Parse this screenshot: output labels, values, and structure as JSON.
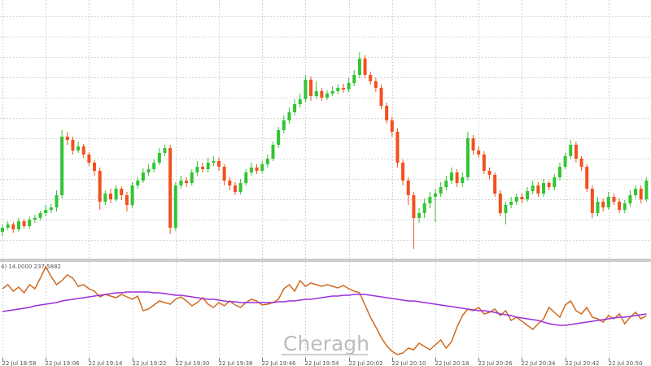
{
  "watermark": "Cheragh",
  "chart_data": [
    {
      "type": "candlestick",
      "categories": [
        "22 Jul 18:58",
        null,
        null,
        null,
        null,
        null,
        null,
        null,
        "22 Jul 19:06",
        null,
        null,
        null,
        null,
        null,
        null,
        null,
        "22 Jul 19:14",
        null,
        null,
        null,
        null,
        null,
        null,
        null,
        "22 Jul 19:22",
        null,
        null,
        null,
        null,
        null,
        null,
        null,
        "22 Jul 19:30",
        null,
        null,
        null,
        null,
        null,
        null,
        null,
        "22 Jul 19:38",
        null,
        null,
        null,
        null,
        null,
        null,
        null,
        "22 Jul 19:46",
        null,
        null,
        null,
        null,
        null,
        null,
        null,
        "22 Jul 19:54",
        null,
        null,
        null,
        null,
        null,
        null,
        null,
        "22 Jul 20:02",
        null,
        null,
        null,
        null,
        null,
        null,
        null,
        "22 Jul 20:10",
        null,
        null,
        null,
        null,
        null,
        null,
        null,
        "22 Jul 20:18",
        null,
        null,
        null,
        null,
        null,
        null,
        null,
        "22 Jul 20:26",
        null,
        null,
        null,
        null,
        null,
        null,
        null,
        "22 Jul 20:34",
        null,
        null,
        null,
        null,
        null,
        null,
        null,
        "22 Jul 20:42",
        null,
        null,
        null,
        null,
        null,
        null,
        null,
        "22 Jul 20:50",
        null,
        null,
        null,
        null,
        null,
        null,
        null
      ],
      "open": [
        33,
        38,
        42,
        36,
        46,
        40,
        48,
        50,
        56,
        60,
        63,
        78,
        150,
        146,
        133,
        138,
        128,
        118,
        108,
        70,
        80,
        73,
        86,
        78,
        66,
        90,
        96,
        106,
        110,
        118,
        130,
        136,
        38,
        90,
        96,
        93,
        106,
        113,
        110,
        118,
        120,
        113,
        96,
        90,
        82,
        93,
        106,
        112,
        108,
        116,
        123,
        140,
        158,
        170,
        180,
        190,
        196,
        220,
        200,
        206,
        198,
        203,
        206,
        210,
        208,
        216,
        226,
        246,
        226,
        218,
        210,
        188,
        170,
        156,
        118,
        96,
        78,
        50,
        56,
        68,
        76,
        80,
        88,
        96,
        106,
        93,
        100,
        148,
        133,
        128,
        108,
        103,
        80,
        56,
        66,
        70,
        76,
        73,
        83,
        90,
        80,
        93,
        88,
        100,
        113,
        126,
        140,
        123,
        113,
        86,
        56,
        70,
        63,
        76,
        70,
        60,
        68,
        78,
        86,
        73
      ],
      "high": [
        42,
        46,
        45,
        50,
        49,
        52,
        54,
        59,
        66,
        67,
        84,
        158,
        156,
        150,
        144,
        141,
        131,
        121,
        112,
        84,
        86,
        90,
        89,
        82,
        94,
        100,
        111,
        116,
        122,
        136,
        140,
        140,
        94,
        102,
        100,
        110,
        120,
        118,
        124,
        126,
        124,
        116,
        100,
        94,
        98,
        110,
        118,
        116,
        120,
        128,
        144,
        162,
        176,
        186,
        196,
        203,
        226,
        224,
        218,
        210,
        207,
        212,
        214,
        215,
        222,
        232,
        254,
        250,
        230,
        222,
        214,
        192,
        174,
        160,
        122,
        100,
        82,
        62,
        74,
        82,
        86,
        94,
        102,
        112,
        110,
        106,
        156,
        152,
        138,
        132,
        112,
        106,
        84,
        70,
        76,
        80,
        80,
        88,
        96,
        94,
        98,
        96,
        104,
        118,
        130,
        146,
        144,
        126,
        116,
        90,
        76,
        74,
        82,
        80,
        74,
        72,
        84,
        90,
        90,
        100
      ],
      "low": [
        28,
        35,
        32,
        33,
        37,
        36,
        44,
        47,
        52,
        56,
        58,
        74,
        140,
        128,
        130,
        124,
        114,
        102,
        60,
        66,
        68,
        70,
        72,
        58,
        62,
        86,
        93,
        102,
        106,
        115,
        126,
        30,
        34,
        86,
        88,
        90,
        102,
        106,
        106,
        114,
        108,
        90,
        84,
        78,
        79,
        90,
        102,
        104,
        105,
        112,
        120,
        136,
        154,
        166,
        176,
        186,
        192,
        194,
        196,
        194,
        195,
        200,
        202,
        204,
        205,
        212,
        222,
        222,
        214,
        205,
        184,
        166,
        150,
        112,
        90,
        66,
        12,
        44,
        50,
        62,
        45,
        76,
        84,
        92,
        88,
        88,
        96,
        128,
        124,
        104,
        98,
        76,
        52,
        42,
        62,
        66,
        68,
        70,
        79,
        76,
        76,
        84,
        84,
        96,
        110,
        122,
        118,
        108,
        82,
        50,
        52,
        58,
        60,
        66,
        56,
        56,
        64,
        74,
        68,
        70
      ],
      "close": [
        38,
        42,
        36,
        46,
        40,
        48,
        50,
        56,
        60,
        63,
        78,
        150,
        146,
        133,
        138,
        128,
        118,
        108,
        70,
        80,
        73,
        86,
        78,
        66,
        90,
        96,
        106,
        110,
        118,
        130,
        136,
        38,
        90,
        96,
        93,
        106,
        113,
        110,
        118,
        120,
        113,
        96,
        90,
        82,
        93,
        106,
        112,
        108,
        116,
        123,
        140,
        158,
        170,
        180,
        190,
        196,
        220,
        200,
        206,
        198,
        203,
        206,
        210,
        208,
        216,
        226,
        246,
        226,
        218,
        210,
        188,
        170,
        156,
        118,
        96,
        78,
        50,
        56,
        68,
        76,
        80,
        88,
        96,
        106,
        93,
        100,
        148,
        133,
        128,
        108,
        103,
        80,
        56,
        66,
        70,
        76,
        73,
        83,
        90,
        80,
        93,
        88,
        100,
        113,
        126,
        140,
        123,
        113,
        86,
        56,
        70,
        63,
        76,
        70,
        60,
        68,
        78,
        86,
        73,
        96
      ],
      "up_color": "#33c433",
      "down_color": "#f2501f",
      "ylim": [
        0,
        318
      ],
      "ygrid": [
        23,
        48,
        73,
        98,
        123,
        148,
        173,
        198,
        223,
        248,
        273,
        298
      ]
    },
    {
      "type": "line",
      "label": "4) 14.0000 237.5882",
      "ylim": [
        0,
        128
      ],
      "series": [
        {
          "color": "#d2691e",
          "values": [
            95,
            100,
            92,
            97,
            90,
            100,
            95,
            108,
            122,
            110,
            100,
            105,
            112,
            108,
            98,
            100,
            95,
            92,
            85,
            88,
            86,
            84,
            88,
            85,
            82,
            86,
            68,
            70,
            75,
            80,
            78,
            76,
            82,
            85,
            80,
            74,
            78,
            84,
            76,
            72,
            78,
            74,
            80,
            75,
            72,
            78,
            82,
            80,
            75,
            76,
            78,
            82,
            95,
            100,
            92,
            105,
            98,
            102,
            100,
            98,
            100,
            98,
            96,
            99,
            95,
            92,
            90,
            75,
            60,
            48,
            35,
            25,
            18,
            14,
            16,
            22,
            20,
            28,
            24,
            20,
            26,
            32,
            22,
            30,
            48,
            62,
            70,
            68,
            72,
            64,
            66,
            70,
            62,
            68,
            56,
            60,
            55,
            50,
            45,
            52,
            58,
            72,
            66,
            60,
            75,
            80,
            68,
            64,
            72,
            60,
            58,
            54,
            62,
            58,
            64,
            52,
            60,
            66,
            58,
            62
          ]
        },
        {
          "color": "#9b30d9",
          "values": [
            67,
            68,
            69,
            70,
            71,
            72,
            74,
            75,
            76,
            77,
            78,
            80,
            81,
            82,
            83,
            84,
            85,
            86,
            87,
            88,
            89,
            90,
            90,
            91,
            91,
            91,
            91,
            91,
            90,
            90,
            89,
            88,
            87,
            87,
            86,
            85,
            84,
            83,
            82,
            82,
            81,
            80,
            79,
            79,
            78,
            78,
            78,
            78,
            78,
            78,
            78,
            79,
            79,
            80,
            80,
            81,
            82,
            82,
            83,
            84,
            85,
            86,
            86,
            87,
            87,
            88,
            88,
            88,
            87,
            86,
            85,
            84,
            83,
            82,
            81,
            80,
            80,
            79,
            78,
            77,
            76,
            75,
            74,
            73,
            72,
            71,
            70,
            69,
            68,
            68,
            67,
            66,
            64,
            63,
            62,
            60,
            59,
            58,
            57,
            56,
            54,
            52,
            51,
            50,
            50,
            51,
            52,
            53,
            54,
            55,
            56,
            57,
            58,
            59,
            60,
            60,
            61,
            62,
            63,
            64
          ]
        }
      ]
    }
  ]
}
